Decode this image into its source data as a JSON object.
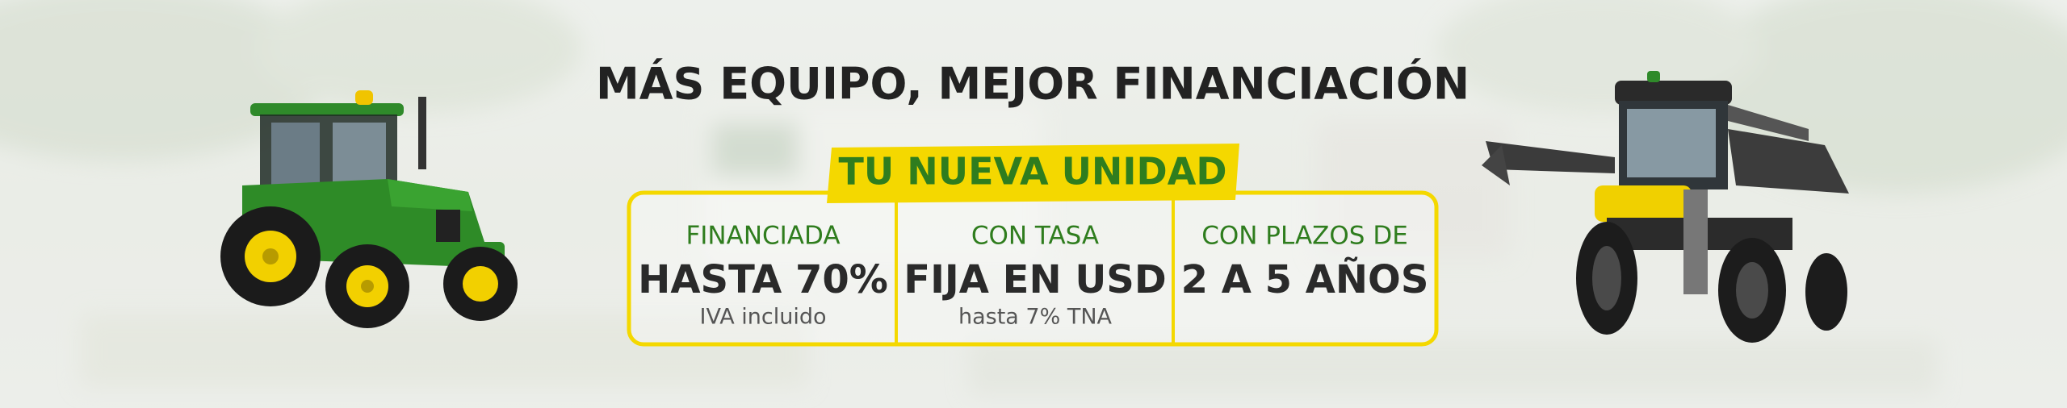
{
  "banner": {
    "title": "MÁS EQUIPO, MEJOR FINANCIACIÓN",
    "tab": "TU NUEVA UNIDAD",
    "columns": [
      {
        "label": "FINANCIADA",
        "main": "HASTA 70%",
        "note": "IVA incluido"
      },
      {
        "label": "CON TASA",
        "main": "FIJA EN USD",
        "note": "hasta 7% TNA"
      },
      {
        "label": "CON PLAZOS DE",
        "main": "2 A 5 AÑOS"
      }
    ]
  }
}
